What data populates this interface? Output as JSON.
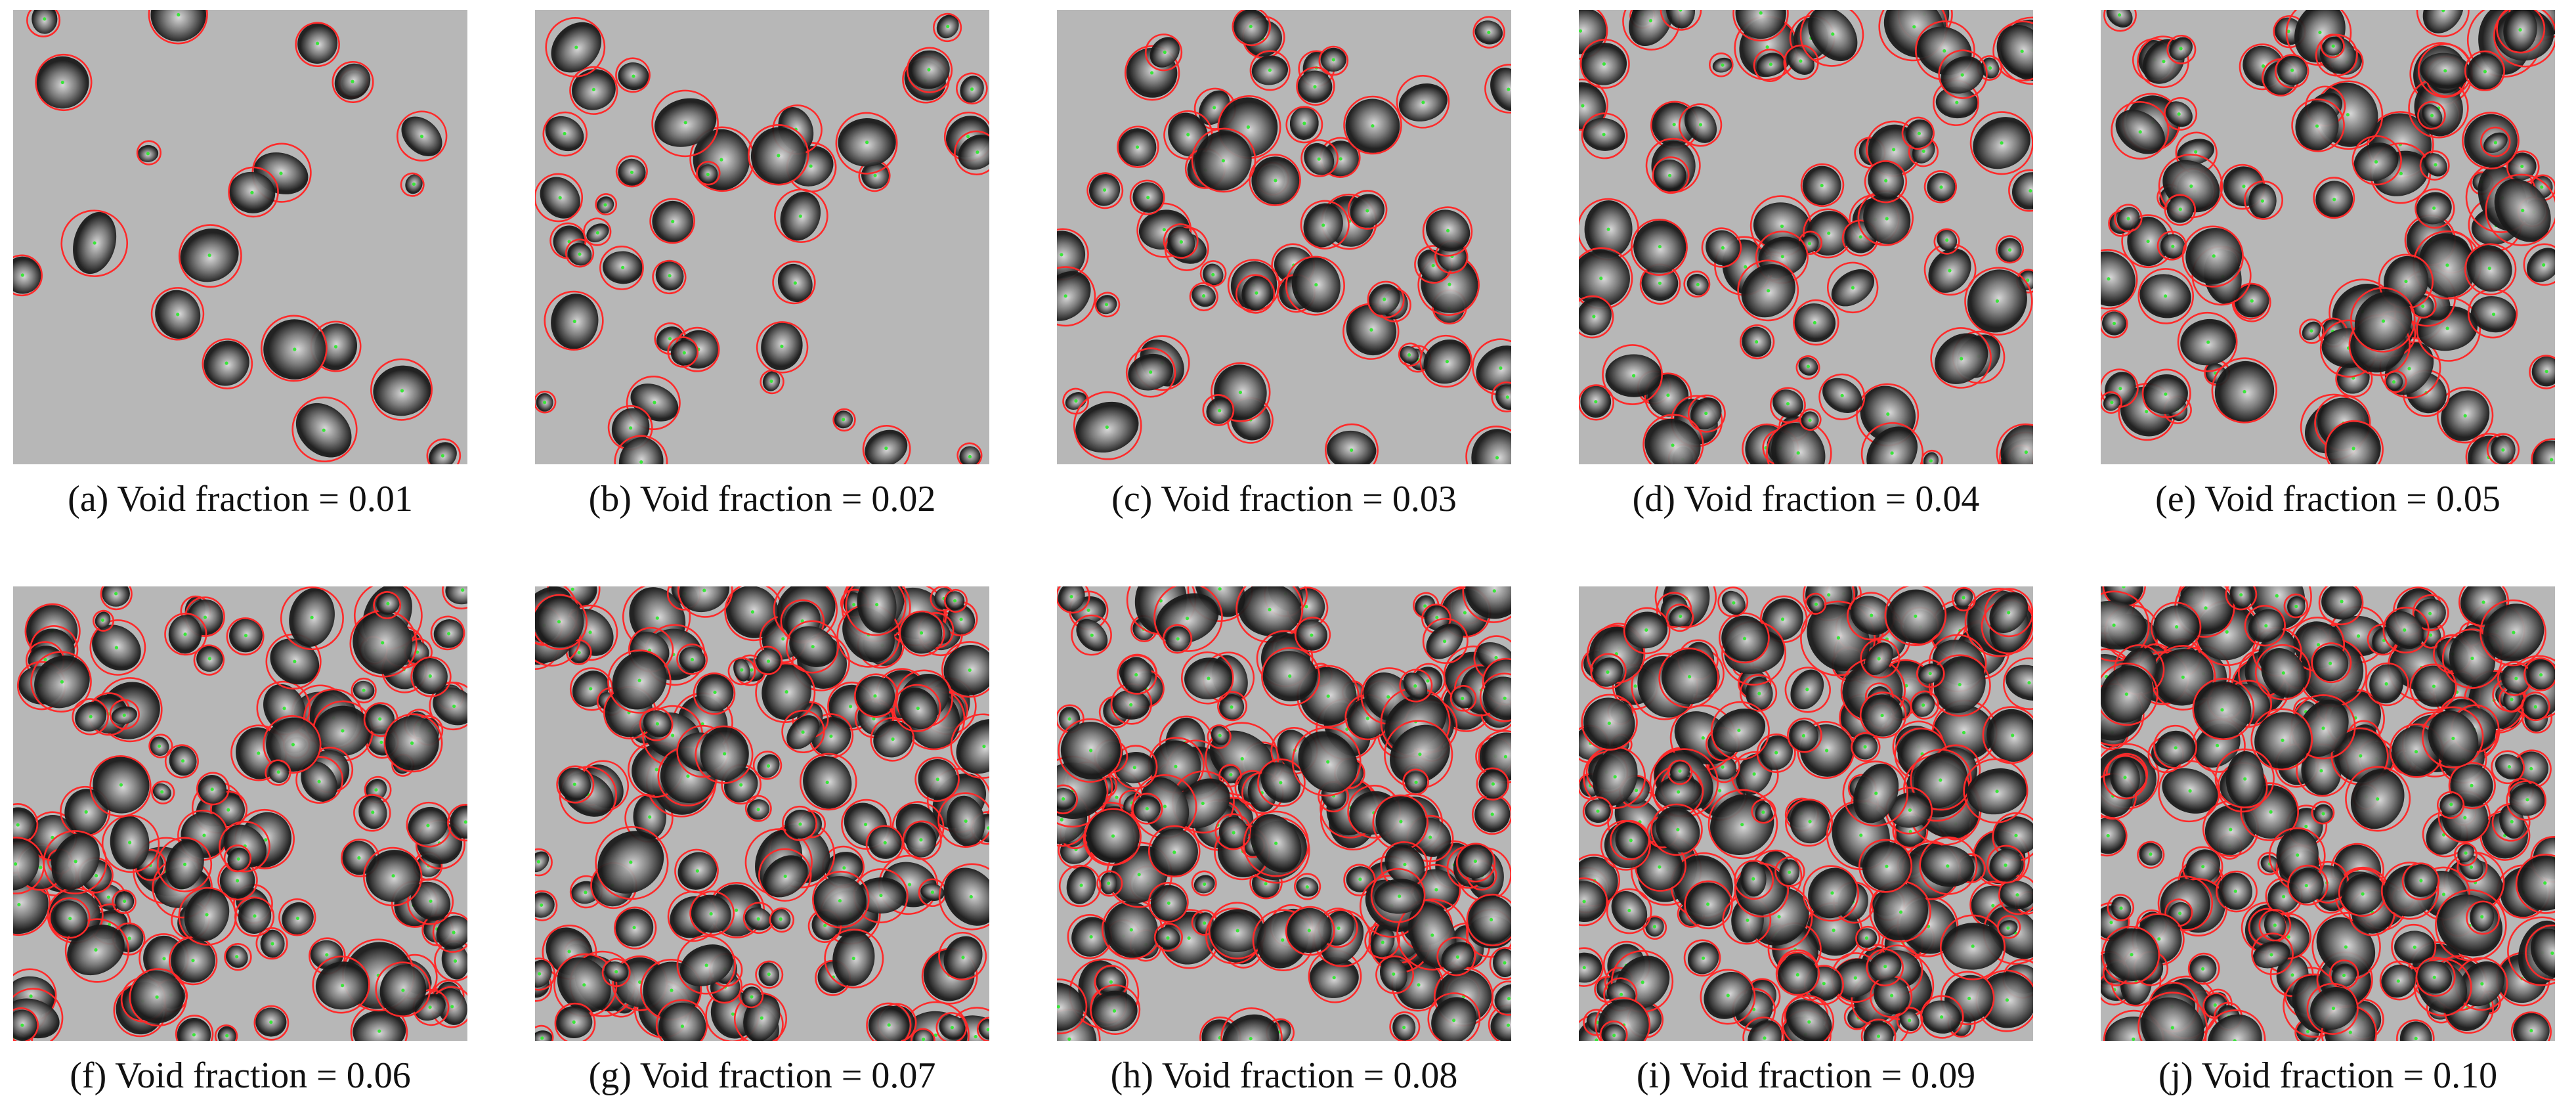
{
  "figure": {
    "panels": [
      {
        "label": "(a)",
        "caption": "Void fraction = 0.01",
        "void_fraction": 0.01
      },
      {
        "label": "(b)",
        "caption": "Void fraction = 0.02",
        "void_fraction": 0.02
      },
      {
        "label": "(c)",
        "caption": "Void fraction = 0.03",
        "void_fraction": 0.03
      },
      {
        "label": "(d)",
        "caption": "Void fraction = 0.04",
        "void_fraction": 0.04
      },
      {
        "label": "(e)",
        "caption": "Void fraction = 0.05",
        "void_fraction": 0.05
      },
      {
        "label": "(f)",
        "caption": "Void fraction = 0.06",
        "void_fraction": 0.06
      },
      {
        "label": "(g)",
        "caption": "Void fraction = 0.07",
        "void_fraction": 0.07
      },
      {
        "label": "(h)",
        "caption": "Void fraction = 0.08",
        "void_fraction": 0.08
      },
      {
        "label": "(i)",
        "caption": "Void fraction = 0.09",
        "void_fraction": 0.09
      },
      {
        "label": "(j)",
        "caption": "Void fraction = 0.10",
        "void_fraction": 0.1
      }
    ]
  },
  "colors": {
    "background": "#b7b7b7",
    "bubble_dark": "#1a1a1a",
    "bubble_mid": "#7a7a7a",
    "bubble_light": "#d9d9d9",
    "detection_circle": "#ff2a2a",
    "center_marker": "#39e639"
  }
}
